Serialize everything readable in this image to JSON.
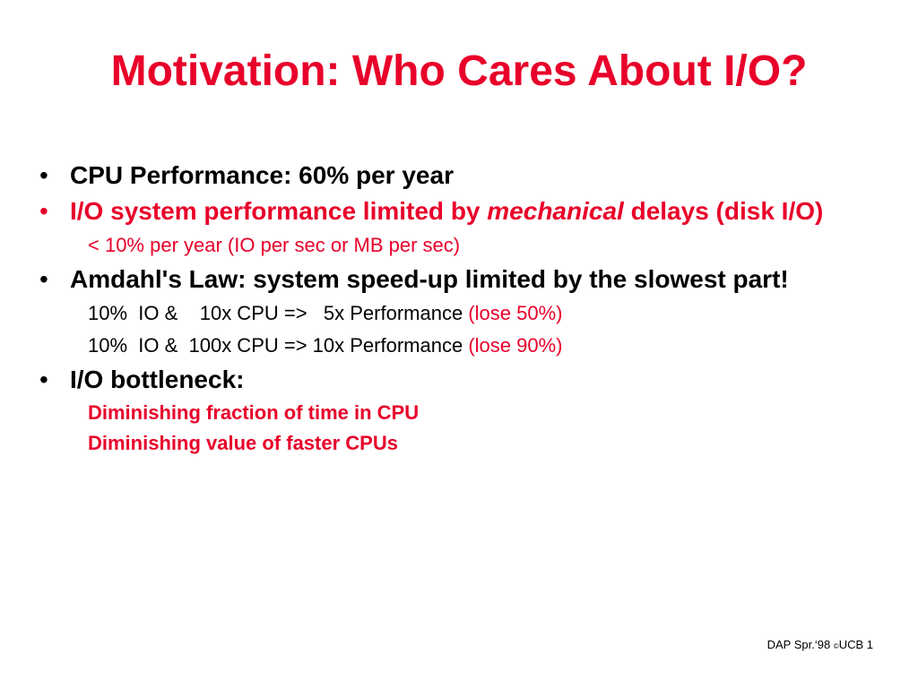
{
  "title": "Motivation: Who Cares About I/O?",
  "bullets": {
    "b1": "CPU Performance: 60% per year",
    "b2_pre": "I/O system performance limited by ",
    "b2_em": "mechanical",
    "b2_post": " delays (disk I/O)",
    "b2_sub": "< 10% per year (IO per sec or MB per sec)",
    "b3": "Amdahl's Law: system speed-up limited by the slowest part!",
    "b3_sub1": "10%  IO &    10x CPU =>   5x Performance ",
    "b3_sub1_red": "(lose 50%)",
    "b3_sub2": "10%  IO &  100x CPU => 10x Performance ",
    "b3_sub2_red": "(lose 90%)",
    "b4": " I/O bottleneck:",
    "b4_sub1": "Diminishing fraction of time in CPU",
    "b4_sub2": "Diminishing value of faster CPUs"
  },
  "bullet_glyph": "•",
  "footer": {
    "text": "DAP Spr.‘98 ",
    "copyright": "©",
    "text2": "UCB 1"
  },
  "colors": {
    "accent_red": "#e8002a",
    "text": "#000000",
    "background": "#ffffff"
  }
}
